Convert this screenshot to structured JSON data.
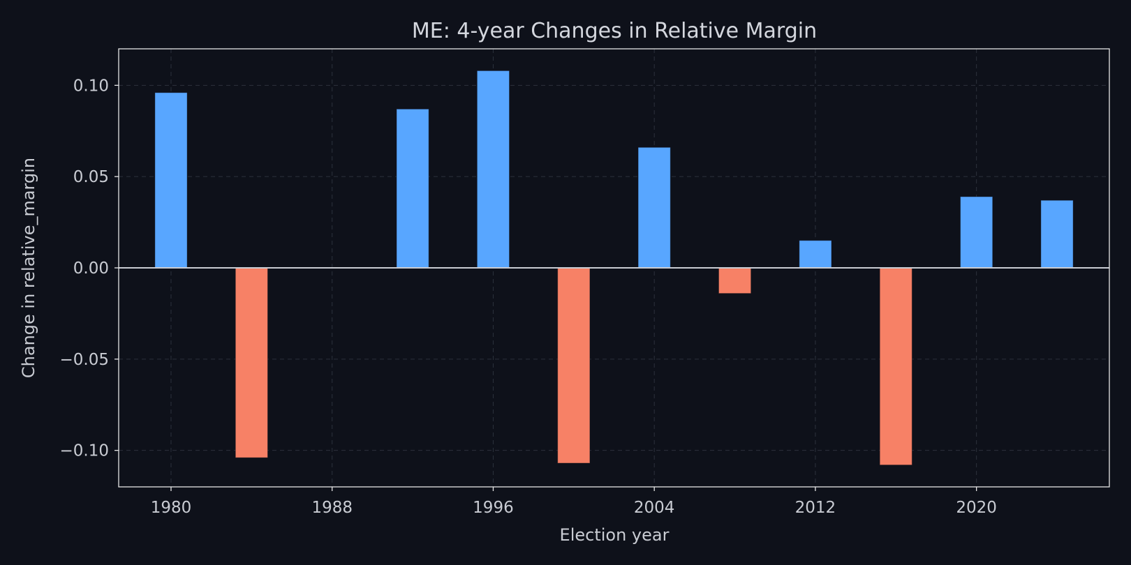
{
  "chart_data": {
    "type": "bar",
    "title": "ME: 4-year Changes in Relative Margin",
    "xlabel": "Election year",
    "ylabel": "Change in relative_margin",
    "x": [
      1980,
      1984,
      1992,
      1996,
      2000,
      2004,
      2008,
      2012,
      2016,
      2020,
      2024
    ],
    "values": [
      0.096,
      -0.104,
      0.087,
      0.108,
      -0.107,
      0.066,
      -0.014,
      0.015,
      -0.108,
      0.039,
      0.037
    ],
    "xlim": [
      1977.4,
      2026.6
    ],
    "ylim": [
      -0.12,
      0.12
    ],
    "x_ticks": [
      1980,
      1988,
      1996,
      2004,
      2012,
      2020
    ],
    "x_tick_labels": [
      "1980",
      "1988",
      "1996",
      "2004",
      "2012",
      "2020"
    ],
    "y_ticks": [
      0.1,
      0.05,
      0.0,
      -0.05,
      -0.1
    ],
    "y_tick_labels": [
      "0.10",
      "0.05",
      "0.00",
      "−0.05",
      "−0.10"
    ],
    "grid": true,
    "colors": {
      "positive": "#58a6ff",
      "negative": "#f78166",
      "background": "#0e111a",
      "axes": "#e6e6e6",
      "text": "#c9ccd3",
      "zero_line": "#c9ccd3"
    }
  }
}
